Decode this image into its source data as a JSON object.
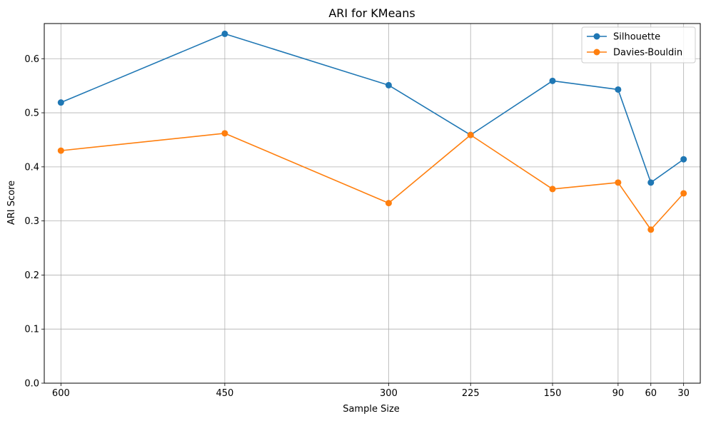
{
  "chart_data": {
    "type": "line",
    "title": "ARI for KMeans",
    "xlabel": "Sample Size",
    "ylabel": "ARI Score",
    "x": [
      600,
      450,
      300,
      225,
      150,
      90,
      60,
      30
    ],
    "x_reversed": true,
    "y_ticks": [
      "0.0",
      "0.1",
      "0.2",
      "0.3",
      "0.4",
      "0.5",
      "0.6"
    ],
    "ylim": [
      0,
      0.665
    ],
    "grid": true,
    "legend_position": "top-right",
    "series": [
      {
        "name": "Silhouette",
        "color": "#1f77b4",
        "marker": "circle",
        "values": [
          0.519,
          0.646,
          0.551,
          0.459,
          0.559,
          0.543,
          0.371,
          0.414
        ]
      },
      {
        "name": "Davies-Bouldin",
        "color": "#ff7f0e",
        "marker": "circle",
        "values": [
          0.43,
          0.462,
          0.333,
          0.459,
          0.359,
          0.371,
          0.284,
          0.351
        ]
      }
    ]
  }
}
